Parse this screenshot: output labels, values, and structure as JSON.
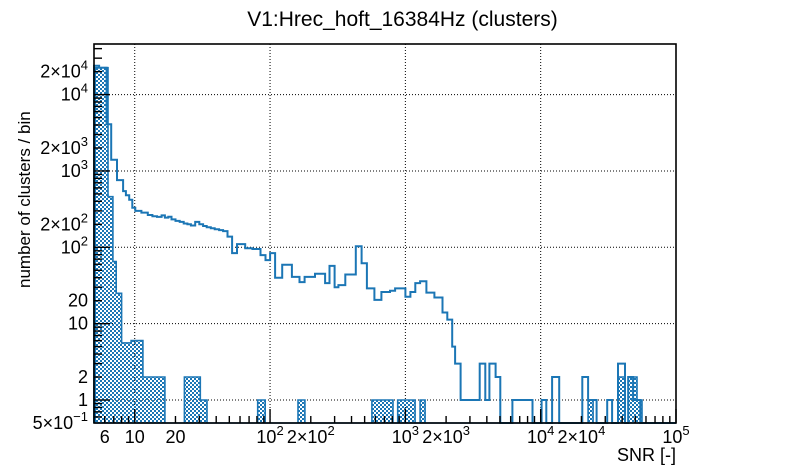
{
  "title": "V1:Hrec_hoft_16384Hz (clusters)",
  "chart_data": {
    "type": "bar",
    "subtype": "step-histogram-log-log",
    "title": "V1:Hrec_hoft_16384Hz (clusters)",
    "xlabel": "SNR [-]",
    "ylabel": "number of clusters / bin",
    "xlim": [
      5,
      100000
    ],
    "ylim": [
      0.5,
      46000
    ],
    "grid": "dotted-on-decades",
    "x_gridlines": [
      10,
      100,
      1000,
      10000
    ],
    "y_gridlines": [
      1,
      10,
      100,
      1000,
      10000
    ],
    "x_major_ticks": [
      10,
      100,
      1000,
      10000,
      100000
    ],
    "x_minor_ticks": [
      6,
      7,
      8,
      9,
      20,
      30,
      40,
      50,
      60,
      70,
      80,
      90,
      200,
      300,
      400,
      500,
      600,
      700,
      800,
      900,
      2000,
      3000,
      4000,
      5000,
      6000,
      7000,
      8000,
      9000,
      20000,
      30000,
      40000,
      50000,
      60000,
      70000,
      80000,
      90000
    ],
    "y_major_ticks": [
      1,
      10,
      100,
      1000,
      10000
    ],
    "y_minor_ticks": [
      0.6,
      0.7,
      0.8,
      0.9,
      2,
      3,
      4,
      5,
      6,
      7,
      8,
      9,
      20,
      30,
      40,
      50,
      60,
      70,
      80,
      90,
      200,
      300,
      400,
      500,
      600,
      700,
      800,
      900,
      2000,
      3000,
      4000,
      5000,
      6000,
      7000,
      8000,
      9000,
      20000,
      30000,
      40000
    ],
    "x_tick_labels": [
      {
        "v": 6,
        "b": "6"
      },
      {
        "v": 10,
        "b": "10"
      },
      {
        "v": 20,
        "b": "20"
      },
      {
        "v": 100,
        "b": "10",
        "e": "2"
      },
      {
        "v": 200,
        "b": "2×10",
        "e": "2"
      },
      {
        "v": 1000,
        "b": "10",
        "e": "3"
      },
      {
        "v": 2000,
        "b": "2×10",
        "e": "3"
      },
      {
        "v": 10000,
        "b": "10",
        "e": "4"
      },
      {
        "v": 20000,
        "b": "2×10",
        "e": "4"
      },
      {
        "v": 100000,
        "b": "10",
        "e": "5"
      }
    ],
    "y_tick_labels": [
      {
        "v": 0.5,
        "b": "5×10",
        "e": "−1"
      },
      {
        "v": 1,
        "b": "1"
      },
      {
        "v": 2,
        "b": "2"
      },
      {
        "v": 10,
        "b": "10"
      },
      {
        "v": 20,
        "b": "20"
      },
      {
        "v": 100,
        "b": "10",
        "e": "2"
      },
      {
        "v": 200,
        "b": "2×10",
        "e": "2"
      },
      {
        "v": 1000,
        "b": "10",
        "e": "3"
      },
      {
        "v": 2000,
        "b": "2×10",
        "e": "3"
      },
      {
        "v": 10000,
        "b": "10",
        "e": "4"
      },
      {
        "v": 20000,
        "b": "2×10",
        "e": "4"
      }
    ],
    "series": [
      {
        "name": "clusters-outline",
        "style": "line",
        "color": "#1b76b5",
        "steps": [
          [
            5.0,
            23900
          ],
          [
            5.45,
            22500
          ],
          [
            6.2,
            4100
          ],
          [
            6.7,
            1400
          ],
          [
            7.4,
            760
          ],
          [
            8.2,
            545
          ],
          [
            8.6,
            480
          ],
          [
            9.1,
            420
          ],
          [
            9.6,
            330
          ],
          [
            10.1,
            300
          ],
          [
            11.2,
            285
          ],
          [
            12.5,
            265
          ],
          [
            13.5,
            255
          ],
          [
            14.6,
            250
          ],
          [
            15.8,
            262
          ],
          [
            16.7,
            245
          ],
          [
            17.7,
            252
          ],
          [
            18.7,
            232
          ],
          [
            20,
            222
          ],
          [
            21.5,
            215
          ],
          [
            23,
            205
          ],
          [
            24.5,
            200
          ],
          [
            26,
            193
          ],
          [
            28,
            215
          ],
          [
            30,
            200
          ],
          [
            32,
            190
          ],
          [
            34,
            183
          ],
          [
            36.5,
            178
          ],
          [
            39,
            172
          ],
          [
            42,
            168
          ],
          [
            45,
            163
          ],
          [
            48.5,
            138
          ],
          [
            52.4,
            84
          ],
          [
            57,
            110
          ],
          [
            65.5,
            97
          ],
          [
            74,
            95
          ],
          [
            85,
            79
          ],
          [
            92.5,
            68
          ],
          [
            100,
            84
          ],
          [
            109,
            40
          ],
          [
            117,
            40
          ],
          [
            123,
            59
          ],
          [
            145,
            41
          ],
          [
            165,
            35
          ],
          [
            180,
            41
          ],
          [
            215,
            45
          ],
          [
            255,
            34
          ],
          [
            275,
            57
          ],
          [
            300,
            30
          ],
          [
            320,
            32
          ],
          [
            360,
            44
          ],
          [
            430,
            103
          ],
          [
            475,
            62
          ],
          [
            520,
            29
          ],
          [
            590,
            20.5
          ],
          [
            665,
            26
          ],
          [
            770,
            27
          ],
          [
            840,
            29
          ],
          [
            1000,
            22.5
          ],
          [
            1090,
            26
          ],
          [
            1185,
            34
          ],
          [
            1285,
            36
          ],
          [
            1430,
            25.5
          ],
          [
            1640,
            22
          ],
          [
            1880,
            14
          ],
          [
            2040,
            11.3
          ],
          [
            2220,
            5
          ],
          [
            2330,
            3
          ],
          [
            2560,
            1
          ],
          [
            3540,
            3
          ],
          [
            3900,
            1
          ],
          [
            4180,
            3
          ],
          [
            4640,
            2
          ],
          [
            5030,
            0
          ],
          [
            6180,
            1
          ],
          [
            8700,
            0
          ],
          [
            10150,
            1
          ],
          [
            11000,
            0
          ],
          [
            12150,
            2
          ],
          [
            13700,
            0
          ],
          [
            20300,
            2
          ],
          [
            22400,
            1
          ],
          [
            25900,
            0
          ],
          [
            31000,
            1
          ],
          [
            33700,
            0
          ],
          [
            37300,
            3
          ],
          [
            42000,
            0
          ],
          [
            44300,
            2
          ],
          [
            48200,
            1
          ],
          [
            54500,
            0
          ]
        ]
      },
      {
        "name": "clusters-hatched",
        "style": "hatch",
        "color": "#1b76b5",
        "steps": [
          [
            5.1,
            22500
          ],
          [
            6.35,
            460
          ],
          [
            6.9,
            65
          ],
          [
            7.3,
            25
          ],
          [
            8.0,
            5.6
          ],
          [
            9.4,
            6
          ],
          [
            11.5,
            2
          ],
          [
            16.7,
            0
          ],
          [
            23.3,
            2
          ],
          [
            30.5,
            1
          ],
          [
            34.2,
            0
          ],
          [
            81,
            1
          ],
          [
            92,
            0
          ],
          [
            161,
            1
          ],
          [
            181,
            0
          ],
          [
            566,
            1
          ],
          [
            810,
            0
          ],
          [
            877,
            1
          ],
          [
            1180,
            0
          ],
          [
            1285,
            1
          ],
          [
            1400,
            0
          ],
          [
            22400,
            1
          ],
          [
            24400,
            0
          ],
          [
            37300,
            2
          ],
          [
            42000,
            0
          ],
          [
            44300,
            2
          ],
          [
            51500,
            1
          ],
          [
            56100,
            0
          ]
        ]
      }
    ],
    "frame_color": "#000000",
    "background_color": "#ffffff"
  }
}
